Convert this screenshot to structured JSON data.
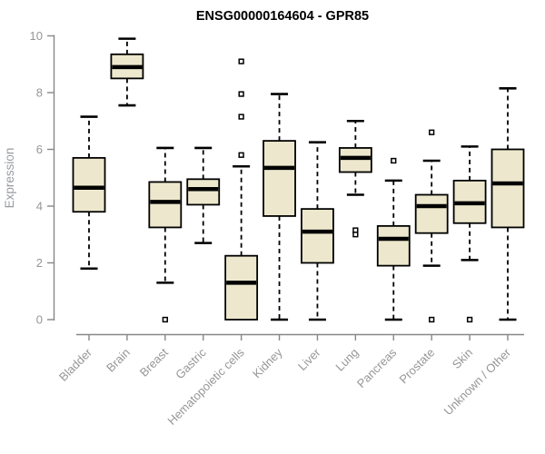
{
  "chart_data": {
    "type": "box",
    "title": "ENSG00000164604 - GPR85",
    "xlabel": "",
    "ylabel": "Expression",
    "ylim": [
      0,
      10
    ],
    "yticks": [
      0,
      2,
      4,
      6,
      8,
      10
    ],
    "categories": [
      "Bladder",
      "Brain",
      "Breast",
      "Gastric",
      "Hematopoietic cells",
      "Kidney",
      "Liver",
      "Lung",
      "Pancreas",
      "Prostate",
      "Skin",
      "Unknown / Other"
    ],
    "boxes": [
      {
        "category": "Bladder",
        "low": 1.8,
        "q1": 3.8,
        "median": 4.65,
        "q3": 5.7,
        "high": 7.15,
        "outliers": []
      },
      {
        "category": "Brain",
        "low": 7.55,
        "q1": 8.5,
        "median": 8.9,
        "q3": 9.35,
        "high": 9.9,
        "outliers": []
      },
      {
        "category": "Breast",
        "low": 1.3,
        "q1": 3.25,
        "median": 4.15,
        "q3": 4.85,
        "high": 6.05,
        "outliers": [
          0
        ]
      },
      {
        "category": "Gastric",
        "low": 2.7,
        "q1": 4.05,
        "median": 4.6,
        "q3": 4.95,
        "high": 6.05,
        "outliers": []
      },
      {
        "category": "Hematopoietic cells",
        "low": 0,
        "q1": 0,
        "median": 1.3,
        "q3": 2.25,
        "high": 5.4,
        "outliers": [
          9.1,
          7.95,
          7.15,
          5.8
        ]
      },
      {
        "category": "Kidney",
        "low": 0,
        "q1": 3.65,
        "median": 5.35,
        "q3": 6.3,
        "high": 7.95,
        "outliers": []
      },
      {
        "category": "Liver",
        "low": 0,
        "q1": 2.0,
        "median": 3.1,
        "q3": 3.9,
        "high": 6.25,
        "outliers": []
      },
      {
        "category": "Lung",
        "low": 4.4,
        "q1": 5.2,
        "median": 5.7,
        "q3": 6.05,
        "high": 7.0,
        "outliers": [
          3.15,
          3.0
        ]
      },
      {
        "category": "Pancreas",
        "low": 0,
        "q1": 1.9,
        "median": 2.85,
        "q3": 3.3,
        "high": 4.9,
        "outliers": [
          5.6
        ]
      },
      {
        "category": "Prostate",
        "low": 1.9,
        "q1": 3.05,
        "median": 4.0,
        "q3": 4.4,
        "high": 5.6,
        "outliers": [
          6.6,
          0
        ]
      },
      {
        "category": "Skin",
        "low": 2.1,
        "q1": 3.4,
        "median": 4.1,
        "q3": 4.9,
        "high": 6.1,
        "outliers": [
          0
        ]
      },
      {
        "category": "Unknown / Other",
        "low": 0,
        "q1": 3.25,
        "median": 4.8,
        "q3": 6.0,
        "high": 8.15,
        "outliers": []
      }
    ],
    "legend": "none",
    "grid": false,
    "colors": {
      "box_fill": "#EDE8CD",
      "box_border": "#000000",
      "median": "#000000",
      "whisker": "#000000",
      "axis_line": "#878787",
      "tick_label": "#969696",
      "title": "#000000"
    }
  }
}
